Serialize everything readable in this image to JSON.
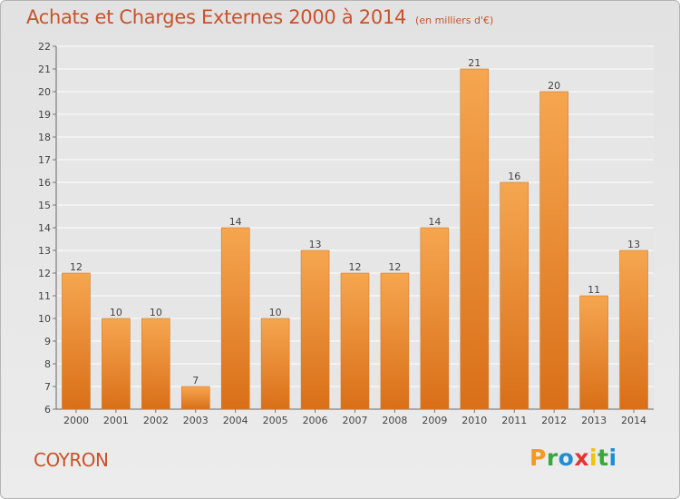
{
  "title": "Achats et Charges Externes 2000 à 2014",
  "unit": "(en milliers d'€)",
  "commune": "COYRON",
  "logo": {
    "letters": [
      "P",
      "r",
      "o",
      "x",
      "i",
      "t",
      "i"
    ],
    "colors": [
      "#f29a24",
      "#37a83b",
      "#1d8ed6",
      "#e1352f",
      "#f2c300",
      "#37a83b",
      "#1d8ed6"
    ]
  },
  "colors": {
    "bar": "#f08a30",
    "title": "#c8522a"
  },
  "chart_data": {
    "type": "bar",
    "title": "Achats et Charges Externes 2000 à 2014",
    "xlabel": "",
    "ylabel": "",
    "ylim": [
      6,
      22
    ],
    "categories": [
      "2000",
      "2001",
      "2002",
      "2003",
      "2004",
      "2005",
      "2006",
      "2007",
      "2008",
      "2009",
      "2010",
      "2011",
      "2012",
      "2013",
      "2014"
    ],
    "values": [
      12,
      10,
      10,
      7,
      14,
      10,
      13,
      12,
      12,
      14,
      21,
      16,
      20,
      11,
      13
    ],
    "yticks": [
      6,
      7,
      8,
      9,
      10,
      11,
      12,
      13,
      14,
      15,
      16,
      17,
      18,
      19,
      20,
      21,
      22
    ],
    "grid": true
  }
}
